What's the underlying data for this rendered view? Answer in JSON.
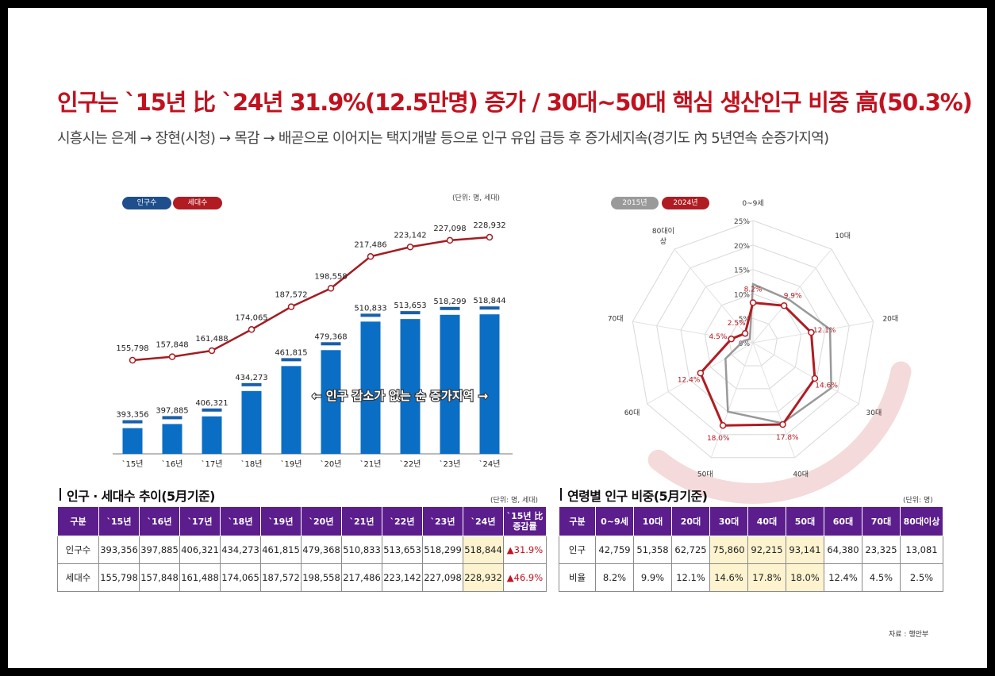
{
  "headline": "인구는 `15년 比 `24년 31.9%(12.5만명) 증가 / 30대~50대 핵심 생산인구 비중 高(50.3%)",
  "subline": "시흥시는 은계 → 장현(시청) → 목감 → 배곧으로 이어지는 택지개발 등으로 인구 유입 급등 후 증가세지속(경기도 內 5년연속 순증가지역)",
  "colors": {
    "population": "#0b6ec5",
    "household": "#a31d22",
    "y2015": "#999999",
    "y2024": "#b01c22",
    "header": "#5b1e8c",
    "highlight": "#fdf3cf"
  },
  "chart_data": [
    {
      "type": "bar+line",
      "unit_note": "(단위: 명, 세대)",
      "legend": [
        "인구수",
        "세대수"
      ],
      "legend_position": "top-left",
      "categories": [
        "`15년",
        "`16년",
        "`17년",
        "`18년",
        "`19년",
        "`20년",
        "`21년",
        "`22년",
        "`23년",
        "`24년"
      ],
      "series": [
        {
          "name": "인구수",
          "type": "bar",
          "values": [
            393356,
            397885,
            406321,
            434273,
            461815,
            479368,
            510833,
            513653,
            518299,
            518844
          ]
        },
        {
          "name": "세대수",
          "type": "line",
          "values": [
            155798,
            157848,
            161488,
            174065,
            187572,
            198558,
            217486,
            223142,
            227098,
            228932
          ]
        }
      ],
      "annotation": "← 인구 감소가 없는 순 증가지역 →"
    },
    {
      "type": "radar",
      "legend": [
        "2015년",
        "2024년"
      ],
      "legend_position": "top-left",
      "categories": [
        "0~9세",
        "10대",
        "20대",
        "30대",
        "40대",
        "50대",
        "60대",
        "70대",
        "80대이상"
      ],
      "axis_labels": [
        "0~9세",
        "10대",
        "20대",
        "30대",
        "40대",
        "50대",
        "60대",
        "70대",
        "80대이\n상"
      ],
      "ticks": [
        "0%",
        "5%",
        "10%",
        "15%",
        "20%",
        "25%"
      ],
      "rlim": [
        0,
        25
      ],
      "series": [
        {
          "name": "2015년",
          "values": [
            12.0,
            11.5,
            16.0,
            18.5,
            17.5,
            15.0,
            6.5,
            2.0,
            1.0
          ]
        },
        {
          "name": "2024년",
          "values": [
            8.2,
            9.9,
            12.1,
            14.6,
            17.8,
            18.0,
            12.4,
            4.5,
            2.5
          ]
        }
      ],
      "value_labels": [
        "8.2%",
        "9.9%",
        "12.1%",
        "14.6%",
        "17.8%",
        "18.0%",
        "12.4%",
        "4.5%",
        "2.5%"
      ]
    }
  ],
  "table1": {
    "title": "인구 · 세대수 추이(5月기준)",
    "unit": "(단위: 명, 세대)",
    "headers": [
      "구분",
      "`15년",
      "`16년",
      "`17년",
      "`18년",
      "`19년",
      "`20년",
      "`21년",
      "`22년",
      "`23년",
      "`24년",
      "`15년 比\n증감률"
    ],
    "rows": [
      [
        "인구수",
        "393,356",
        "397,885",
        "406,321",
        "434,273",
        "461,815",
        "479,368",
        "510,833",
        "513,653",
        "518,299",
        "518,844",
        "▲31.9%"
      ],
      [
        "세대수",
        "155,798",
        "157,848",
        "161,488",
        "174,065",
        "187,572",
        "198,558",
        "217,486",
        "223,142",
        "227,098",
        "228,932",
        "▲46.9%"
      ]
    ]
  },
  "table2": {
    "title": "연령별 인구 비중(5月기준)",
    "unit": "(단위: 명)",
    "headers": [
      "구분",
      "0~9세",
      "10대",
      "20대",
      "30대",
      "40대",
      "50대",
      "60대",
      "70대",
      "80대이상"
    ],
    "rows": [
      [
        "인구",
        "42,759",
        "51,358",
        "62,725",
        "75,860",
        "92,215",
        "93,141",
        "64,380",
        "23,325",
        "13,081"
      ],
      [
        "비율",
        "8.2%",
        "9.9%",
        "12.1%",
        "14.6%",
        "17.8%",
        "18.0%",
        "12.4%",
        "4.5%",
        "2.5%"
      ]
    ]
  },
  "source": "자료 : 행안부"
}
